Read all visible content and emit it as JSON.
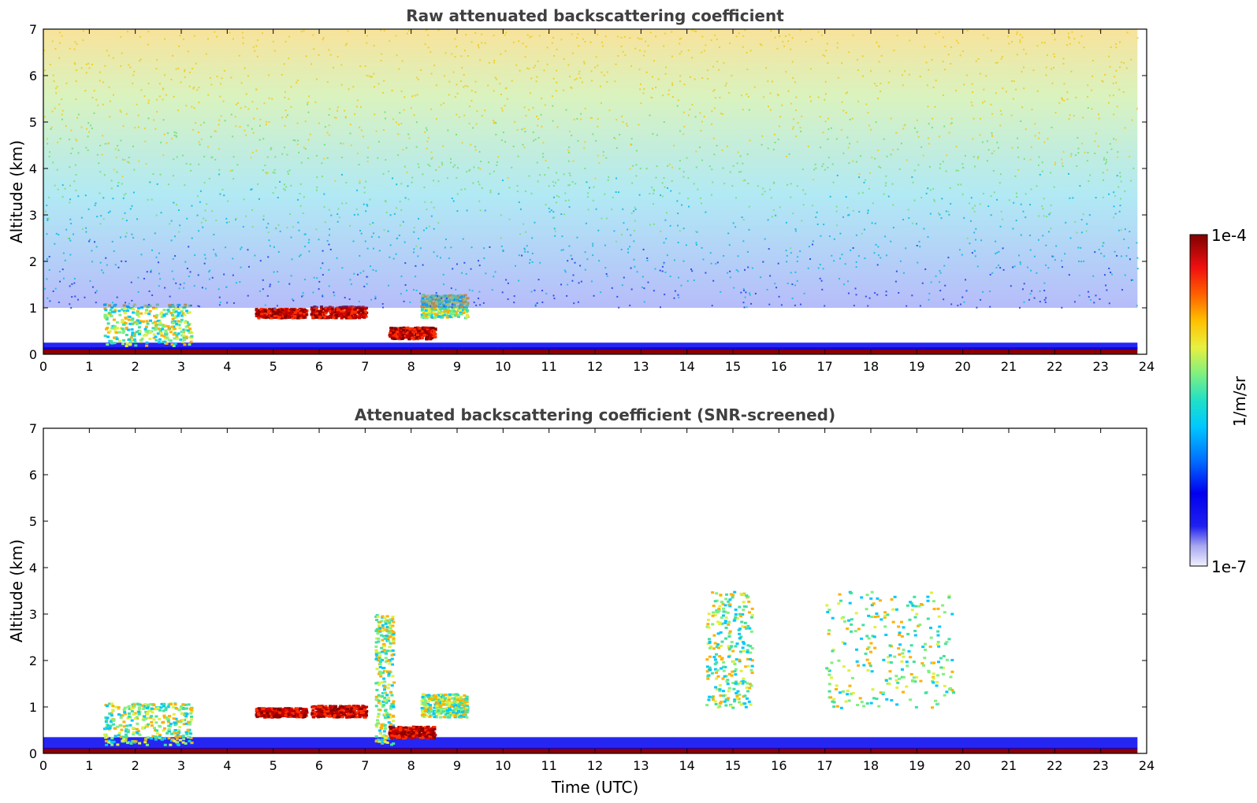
{
  "chart_data": [
    {
      "type": "heatmap",
      "title": "Raw attenuated backscattering coefficient",
      "xlabel": "",
      "ylabel": "Altitude (km)",
      "xlim": [
        0,
        24
      ],
      "ylim": [
        0,
        7
      ],
      "xticks": [
        "0",
        "1",
        "2",
        "3",
        "4",
        "5",
        "6",
        "7",
        "8",
        "9",
        "10",
        "11",
        "12",
        "13",
        "14",
        "15",
        "16",
        "17",
        "18",
        "19",
        "20",
        "21",
        "22",
        "23",
        "24"
      ],
      "yticks": [
        "0",
        "1",
        "2",
        "3",
        "4",
        "5",
        "6",
        "7"
      ],
      "features": [
        {
          "kind": "surface_layer",
          "t": [
            0,
            23.8
          ],
          "alt": [
            0,
            0.15
          ],
          "level": "high"
        },
        {
          "kind": "boundary_layer",
          "t": [
            0,
            23.8
          ],
          "alt": [
            0.1,
            0.25
          ],
          "level": "low"
        },
        {
          "kind": "cloud",
          "t": [
            1.3,
            3.2
          ],
          "alt": [
            0.2,
            1.1
          ],
          "level": "medium"
        },
        {
          "kind": "cloud",
          "t": [
            4.6,
            5.7
          ],
          "alt": [
            0.8,
            1.0
          ],
          "level": "high"
        },
        {
          "kind": "cloud",
          "t": [
            5.8,
            7.0
          ],
          "alt": [
            0.8,
            1.05
          ],
          "level": "high"
        },
        {
          "kind": "cloud",
          "t": [
            7.5,
            8.5
          ],
          "alt": [
            0.35,
            0.6
          ],
          "level": "high"
        },
        {
          "kind": "cloud",
          "t": [
            8.2,
            9.2
          ],
          "alt": [
            0.8,
            1.3
          ],
          "level": "medium"
        },
        {
          "kind": "noise_region",
          "t": [
            0,
            23.8
          ],
          "alt": [
            1.0,
            7.0
          ],
          "level": "noise"
        }
      ]
    },
    {
      "type": "heatmap",
      "title": "Attenuated backscattering coefficient (SNR-screened)",
      "xlabel": "Time (UTC)",
      "ylabel": "Altitude (km)",
      "xlim": [
        0,
        24
      ],
      "ylim": [
        0,
        7
      ],
      "xticks": [
        "0",
        "1",
        "2",
        "3",
        "4",
        "5",
        "6",
        "7",
        "8",
        "9",
        "10",
        "11",
        "12",
        "13",
        "14",
        "15",
        "16",
        "17",
        "18",
        "19",
        "20",
        "21",
        "22",
        "23",
        "24"
      ],
      "yticks": [
        "0",
        "1",
        "2",
        "3",
        "4",
        "5",
        "6",
        "7"
      ],
      "features": [
        {
          "kind": "surface_layer",
          "t": [
            0,
            23.8
          ],
          "alt": [
            0,
            0.12
          ],
          "level": "high"
        },
        {
          "kind": "boundary_layer",
          "t": [
            0,
            23.8
          ],
          "alt": [
            0.1,
            0.35
          ],
          "level": "low"
        },
        {
          "kind": "cloud",
          "t": [
            1.3,
            3.2
          ],
          "alt": [
            0.2,
            1.1
          ],
          "level": "medium"
        },
        {
          "kind": "cloud",
          "t": [
            4.6,
            5.7
          ],
          "alt": [
            0.8,
            1.0
          ],
          "level": "high"
        },
        {
          "kind": "cloud",
          "t": [
            5.8,
            7.0
          ],
          "alt": [
            0.8,
            1.05
          ],
          "level": "high"
        },
        {
          "kind": "plume",
          "t": [
            7.2,
            7.6
          ],
          "alt": [
            0.2,
            3.0
          ],
          "level": "medium"
        },
        {
          "kind": "cloud",
          "t": [
            7.5,
            8.5
          ],
          "alt": [
            0.35,
            0.6
          ],
          "level": "high"
        },
        {
          "kind": "cloud",
          "t": [
            8.2,
            9.2
          ],
          "alt": [
            0.8,
            1.3
          ],
          "level": "medium"
        },
        {
          "kind": "cirrus",
          "t": [
            14.4,
            15.4
          ],
          "alt": [
            1.0,
            3.5
          ],
          "level": "medium"
        },
        {
          "kind": "cirrus",
          "t": [
            17.0,
            19.8
          ],
          "alt": [
            1.0,
            3.5
          ],
          "level": "medium"
        }
      ]
    }
  ],
  "colorbar": {
    "label": "1/m/sr",
    "max_label": "1e-4",
    "min_label": "1e-7",
    "scale": "log",
    "range": [
      1e-07,
      0.0001
    ],
    "colormap": "jet",
    "colors": [
      "#e8e8f8",
      "#a0a0f0",
      "#3030f0",
      "#0000f0",
      "#0060ff",
      "#00c0ff",
      "#20e0c0",
      "#80f080",
      "#e0f040",
      "#ffc000",
      "#ff6000",
      "#f01010",
      "#a00000",
      "#800000"
    ]
  }
}
